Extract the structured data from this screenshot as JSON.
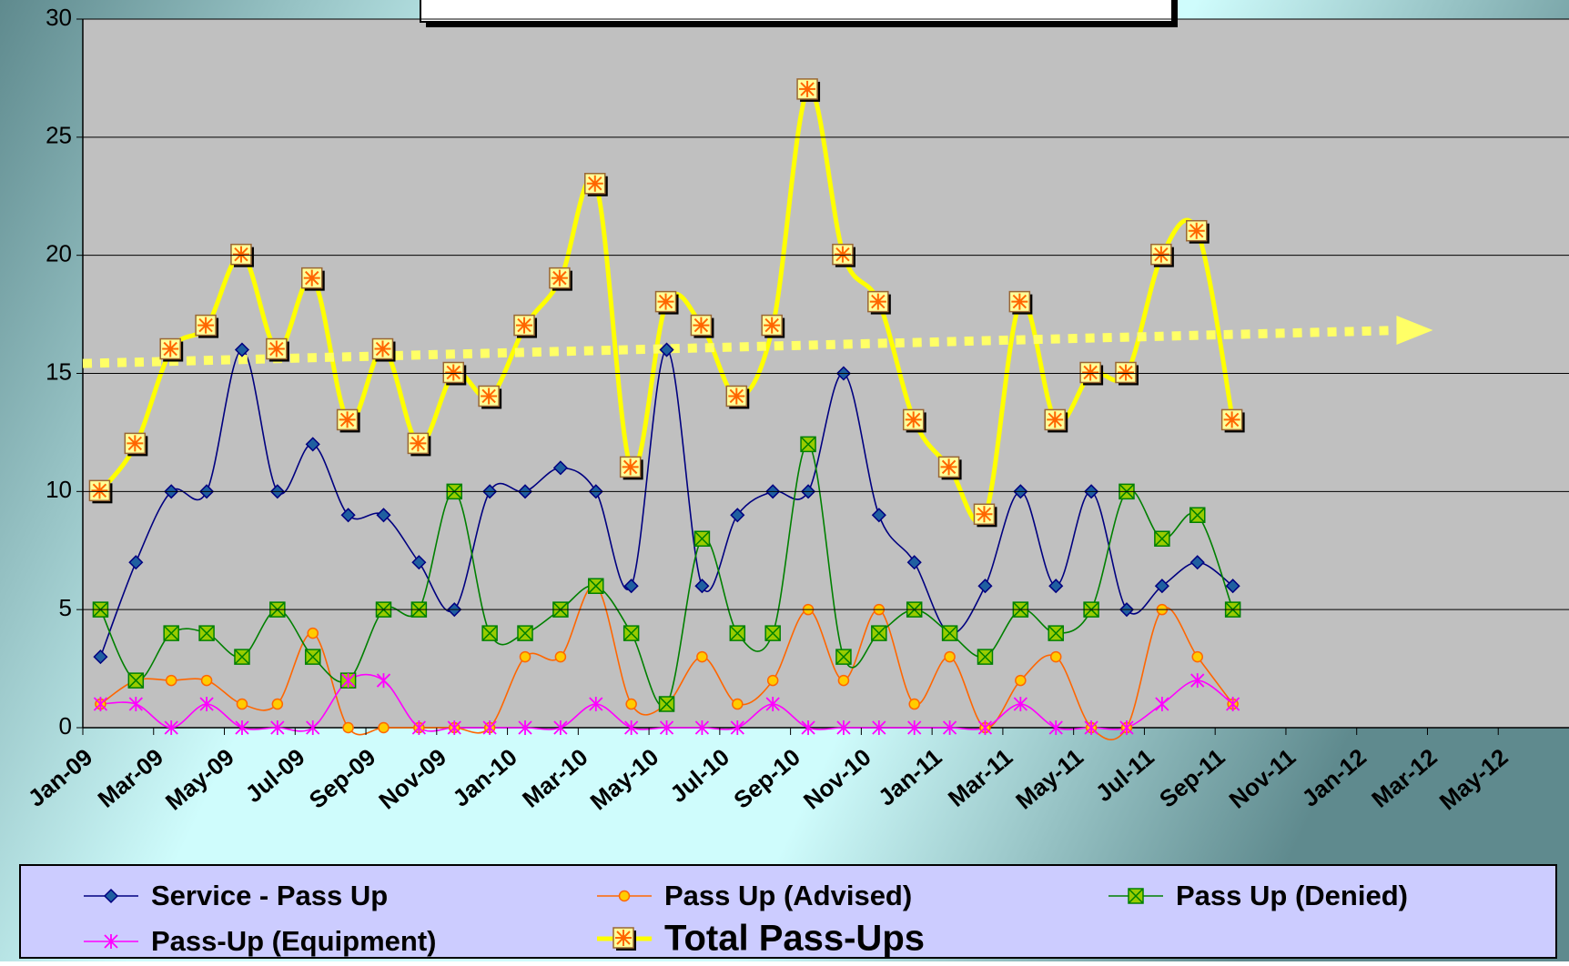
{
  "chart_data": {
    "type": "line",
    "categories": [
      "Jan-09",
      null,
      "Mar-09",
      null,
      "May-09",
      null,
      "Jul-09",
      null,
      "Sep-09",
      null,
      "Nov-09",
      null,
      "Jan-10",
      null,
      "Mar-10",
      null,
      "May-10",
      null,
      "Jul-10",
      null,
      "Sep-10",
      null,
      "Nov-10",
      null,
      "Jan-11",
      null,
      "Mar-11",
      null,
      "May-11",
      null,
      "Jul-11",
      null,
      "Sep-11",
      null,
      "Nov-11",
      null,
      "Jan-12",
      null,
      "Mar-12",
      null,
      "May-12",
      null
    ],
    "series": [
      {
        "name": "Service - Pass Up",
        "color": "#000080",
        "marker": "diamond",
        "values": [
          3,
          7,
          10,
          10,
          16,
          10,
          12,
          9,
          9,
          7,
          5,
          10,
          10,
          11,
          10,
          6,
          16,
          6,
          9,
          10,
          10,
          15,
          9,
          7,
          4,
          6,
          10,
          6,
          10,
          5,
          6,
          7,
          6,
          null,
          null,
          null,
          null,
          null,
          null,
          null,
          null,
          null
        ]
      },
      {
        "name": "Pass Up (Advised)",
        "color": "#ff6600",
        "marker": "circle",
        "values": [
          1,
          2,
          2,
          2,
          1,
          1,
          4,
          0,
          0,
          0,
          0,
          0,
          3,
          3,
          6,
          1,
          1,
          3,
          1,
          2,
          5,
          2,
          5,
          1,
          3,
          0,
          2,
          3,
          0,
          0,
          5,
          3,
          1,
          null,
          null,
          null,
          null,
          null,
          null,
          null,
          null,
          null
        ]
      },
      {
        "name": "Pass Up (Denied)",
        "color": "#008000",
        "marker": "xsquare",
        "values": [
          5,
          2,
          4,
          4,
          3,
          5,
          3,
          2,
          5,
          5,
          10,
          4,
          4,
          5,
          6,
          4,
          1,
          8,
          4,
          4,
          12,
          3,
          4,
          5,
          4,
          3,
          5,
          4,
          5,
          10,
          8,
          9,
          5,
          null,
          null,
          null,
          null,
          null,
          null,
          null,
          null,
          null
        ]
      },
      {
        "name": "Pass-Up (Equipment)",
        "color": "#ff00ff",
        "marker": "star",
        "values": [
          1,
          1,
          0,
          1,
          0,
          0,
          0,
          2,
          2,
          0,
          0,
          0,
          0,
          0,
          1,
          0,
          0,
          0,
          0,
          1,
          0,
          0,
          0,
          0,
          0,
          0,
          1,
          0,
          0,
          0,
          1,
          2,
          1,
          null,
          null,
          null,
          null,
          null,
          null,
          null,
          null,
          null
        ]
      },
      {
        "name": "Total Pass-Ups",
        "color": "#ffff00",
        "marker": "total",
        "values": [
          10,
          12,
          16,
          17,
          20,
          16,
          19,
          13,
          16,
          12,
          15,
          14,
          17,
          19,
          23,
          11,
          18,
          17,
          14,
          17,
          27,
          20,
          18,
          13,
          11,
          9,
          18,
          13,
          15,
          15,
          20,
          21,
          13,
          null,
          null,
          null,
          null,
          null,
          null,
          null,
          null,
          null
        ]
      }
    ],
    "ylim": [
      0,
      30
    ],
    "yticks": [
      0,
      5,
      10,
      15,
      20,
      25,
      30
    ],
    "grid": true,
    "trendline": true,
    "legend": "bottom"
  }
}
